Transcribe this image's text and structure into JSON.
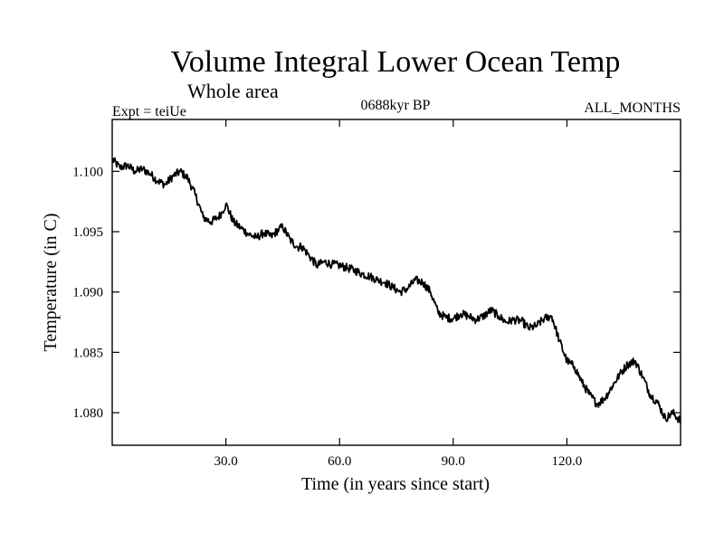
{
  "chart_data": {
    "type": "line",
    "title": "Volume Integral Lower Ocean Temp",
    "subtitle": "Whole area",
    "experiment_label": "Expt = teiUe",
    "period_label": "0688kyr BP",
    "months_label": "ALL_MONTHS",
    "xlabel": "Time (in years since start)",
    "ylabel": "Temperature (in C)",
    "xlim": [
      0,
      150
    ],
    "ylim": [
      1.0773,
      1.1043
    ],
    "x_ticks": [
      30,
      60,
      90,
      120
    ],
    "x_tick_labels": [
      "30.0",
      "60.0",
      "90.0",
      "120.0"
    ],
    "y_ticks": [
      1.08,
      1.085,
      1.09,
      1.095,
      1.1
    ],
    "y_tick_labels": [
      "1.080",
      "1.085",
      "1.090",
      "1.095",
      "1.100"
    ],
    "grid": false,
    "series": [
      {
        "name": "teiUe",
        "color": "#000000",
        "x": [
          0,
          2,
          4,
          6,
          8,
          10,
          12,
          14,
          16,
          18,
          20,
          22,
          24,
          26,
          28,
          29,
          30,
          32,
          34,
          36,
          38,
          40,
          42,
          44,
          45,
          47,
          49,
          50,
          52,
          54,
          56,
          58,
          60,
          62,
          64,
          66,
          68,
          70,
          72,
          74,
          76,
          78,
          80,
          82,
          84,
          86,
          88,
          90,
          92,
          94,
          96,
          98,
          100,
          102,
          104,
          106,
          108,
          110,
          112,
          114,
          116,
          118,
          120,
          122,
          124,
          126,
          128,
          130,
          132,
          134,
          136,
          138,
          140,
          142,
          144,
          146,
          148,
          150
        ],
        "y": [
          1.101,
          1.1003,
          1.1005,
          1.1,
          1.1002,
          1.0998,
          1.0992,
          1.0989,
          1.0996,
          1.1,
          1.0994,
          1.098,
          1.0962,
          1.0958,
          1.0962,
          1.0966,
          1.0973,
          1.0958,
          1.0953,
          1.0948,
          1.0945,
          1.0949,
          1.0946,
          1.0952,
          1.0954,
          1.0943,
          1.0937,
          1.0938,
          1.093,
          1.0922,
          1.0925,
          1.0923,
          1.0922,
          1.092,
          1.0918,
          1.0915,
          1.0913,
          1.091,
          1.0908,
          1.0904,
          1.09,
          1.0903,
          1.091,
          1.0908,
          1.09,
          1.0883,
          1.0879,
          1.0878,
          1.0882,
          1.088,
          1.0877,
          1.088,
          1.0885,
          1.088,
          1.0875,
          1.0877,
          1.0876,
          1.087,
          1.0872,
          1.0878,
          1.088,
          1.086,
          1.0843,
          1.0838,
          1.0825,
          1.0815,
          1.0807,
          1.0812,
          1.0822,
          1.0832,
          1.084,
          1.0843,
          1.083,
          1.0815,
          1.0808,
          1.0795,
          1.08,
          1.0793
        ]
      }
    ]
  }
}
